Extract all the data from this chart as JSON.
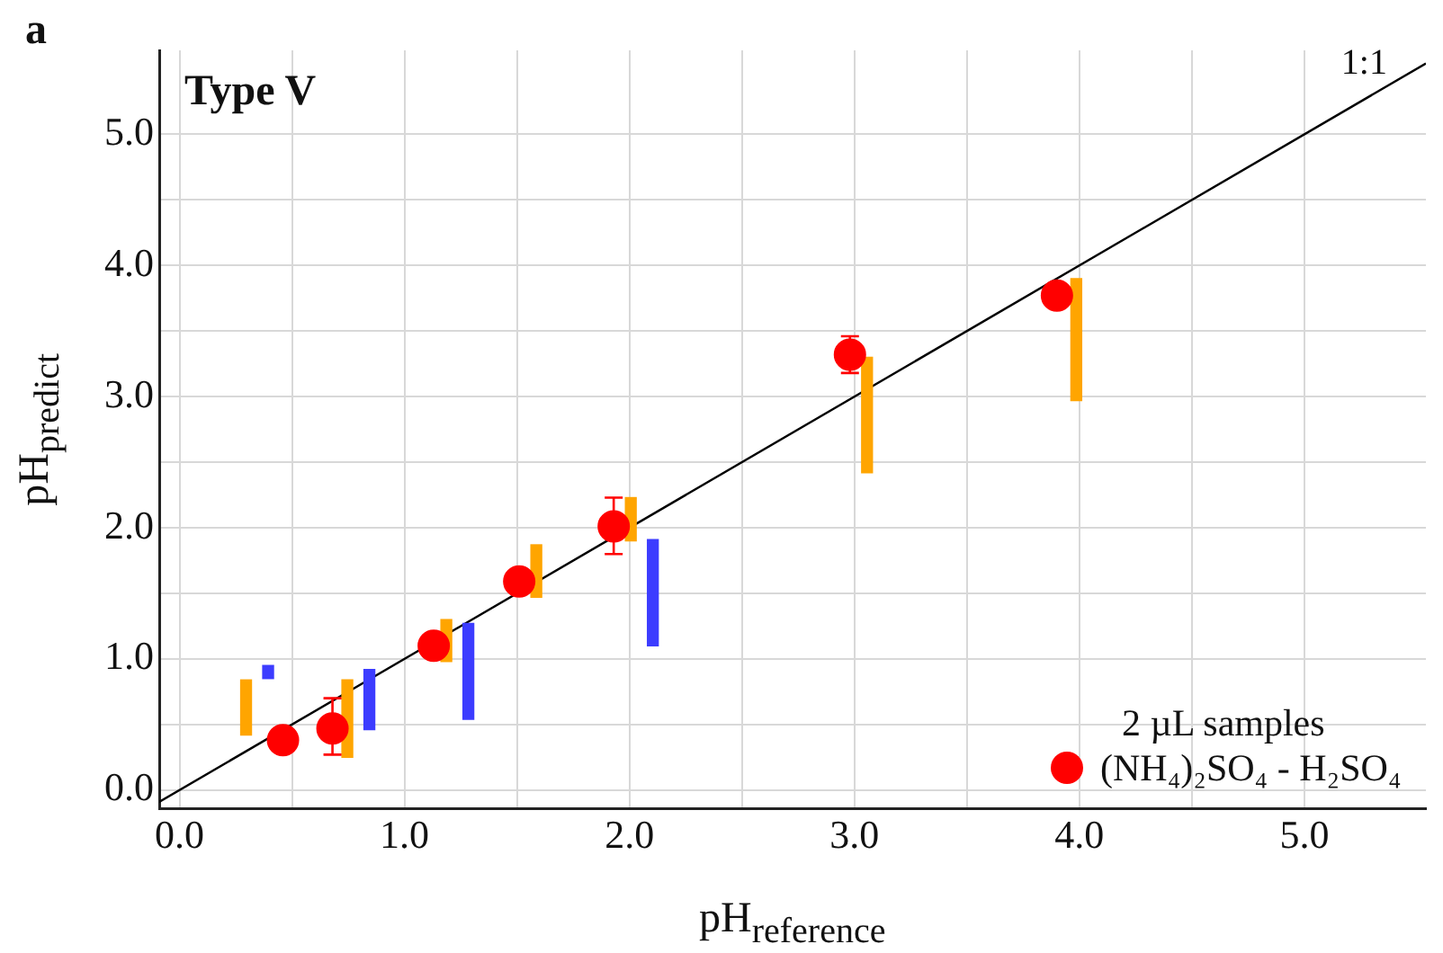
{
  "chart_data": {
    "type": "scatter",
    "xlabel": "pH$_{reference}$",
    "ylabel": "pH$_{predict}$",
    "legend_title": "2 µL samples",
    "annotations": [
      "a",
      "Type V",
      {
        "text": "1:1",
        "x": 5.4,
        "y": 5.4
      }
    ],
    "xlim": [
      -0.09,
      5.54
    ],
    "ylim": [
      -0.14,
      5.64
    ],
    "xticks": [
      {
        "value": 0,
        "label": "0.0"
      },
      {
        "value": 0.5,
        "label": null
      },
      {
        "value": 1,
        "label": "1.0"
      },
      {
        "value": 1.5,
        "label": null
      },
      {
        "value": 2,
        "label": "2.0"
      },
      {
        "value": 2.5,
        "label": null
      },
      {
        "value": 3,
        "label": "3.0"
      },
      {
        "value": 3.5,
        "label": null
      },
      {
        "value": 4,
        "label": "4.0"
      },
      {
        "value": 4.5,
        "label": null
      },
      {
        "value": 5,
        "label": "5.0"
      }
    ],
    "yticks": [
      {
        "value": 0,
        "label": "0.0"
      },
      {
        "value": 0.5,
        "label": null
      },
      {
        "value": 1,
        "label": "1.0"
      },
      {
        "value": 1.5,
        "label": null
      },
      {
        "value": 2,
        "label": "2.0"
      },
      {
        "value": 2.5,
        "label": null
      },
      {
        "value": 3,
        "label": "3.0"
      },
      {
        "value": 3.5,
        "label": null
      },
      {
        "value": 4,
        "label": "4.0"
      },
      {
        "value": 4.5,
        "label": null
      },
      {
        "value": 5,
        "label": "5.0"
      }
    ],
    "grid": true,
    "legend": "bottom right",
    "marker": "circle",
    "line_style": "solid",
    "series": [
      {
        "type": "line",
        "marker": "none",
        "color": "#000000",
        "x": [
          -0.09,
          5.54
        ],
        "values": [
          -0.09,
          5.54
        ]
      },
      {
        "type": "bar",
        "color": "#ffa500",
        "x": [
          0.32,
          0.77,
          1.21,
          1.61,
          2.03,
          3.08,
          4.01
        ],
        "base": [
          0.42,
          0.25,
          0.98,
          1.47,
          1.9,
          2.42,
          2.97
        ],
        "values": [
          0.42,
          0.59,
          0.32,
          0.4,
          0.33,
          0.88,
          0.93
        ]
      },
      {
        "type": "bar",
        "color": "#3c3cff",
        "x": [
          0.37,
          0.82,
          1.26,
          2.08
        ],
        "base": [
          0.85,
          0.46,
          0.54,
          1.1
        ],
        "values": [
          0.1,
          0.46,
          0.73,
          0.81
        ]
      },
      {
        "name": "(NH₄)₂SO₄ - H₂SO₄",
        "color": "#ff0000",
        "x": [
          0.46,
          0.68,
          1.13,
          1.51,
          1.93,
          2.98,
          3.9
        ],
        "values": [
          0.38,
          0.47,
          1.1,
          1.59,
          2.01,
          3.32,
          3.77
        ],
        "errors": [
          null,
          [
            0.27,
            0.7
          ],
          null,
          null,
          [
            1.8,
            2.23
          ],
          [
            3.18,
            3.46
          ],
          null
        ]
      }
    ]
  }
}
